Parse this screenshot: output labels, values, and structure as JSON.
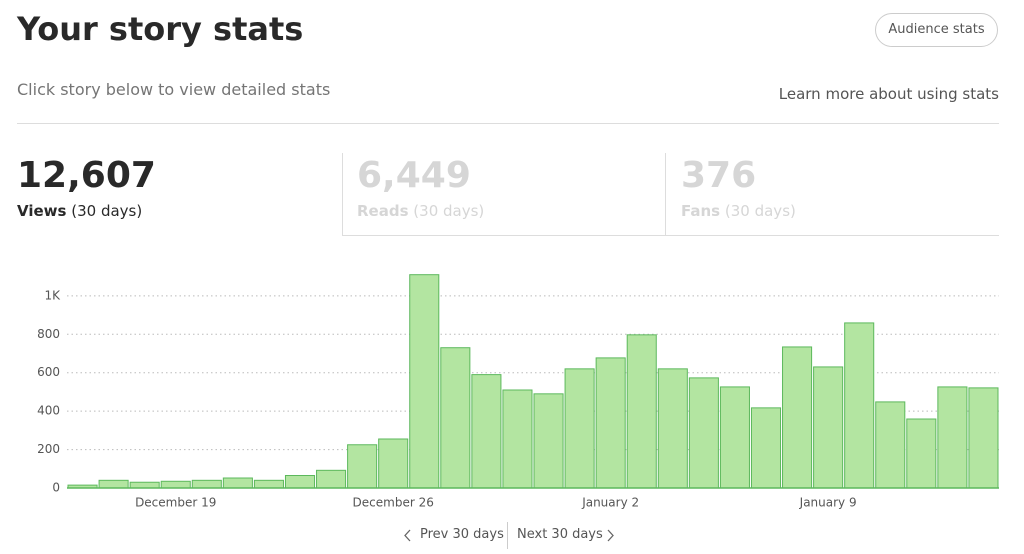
{
  "header": {
    "title": "Your story stats",
    "button": "Audience stats"
  },
  "subtitle": "Click story below to view detailed stats",
  "learn_more": "Learn more about using stats",
  "stats": [
    {
      "value": "12,607",
      "label": "Views",
      "period": "(30 days)"
    },
    {
      "value": "6,449",
      "label": "Reads",
      "period": "(30 days)"
    },
    {
      "value": "376",
      "label": "Fans",
      "period": "(30 days)"
    }
  ],
  "chart_data": {
    "type": "bar",
    "categories": [
      null,
      null,
      null,
      "December 19",
      null,
      null,
      null,
      null,
      null,
      null,
      "December 26",
      null,
      null,
      null,
      null,
      null,
      null,
      "January 2",
      null,
      null,
      null,
      null,
      null,
      null,
      "January 9",
      null,
      null,
      null,
      null,
      null
    ],
    "values": [
      15,
      40,
      30,
      35,
      40,
      52,
      40,
      65,
      92,
      225,
      255,
      1110,
      730,
      590,
      510,
      490,
      620,
      677,
      797,
      620,
      573,
      526,
      417,
      734,
      630,
      859,
      448,
      359,
      526,
      521
    ],
    "color": "#b3e5a1",
    "ylim": [
      0,
      1150
    ],
    "yticks": [
      0,
      200,
      400,
      600,
      800,
      {
        "value": 1000,
        "label": "1K"
      }
    ],
    "grid": true
  },
  "pagination": {
    "prev": "Prev 30 days",
    "next": "Next 30 days"
  }
}
